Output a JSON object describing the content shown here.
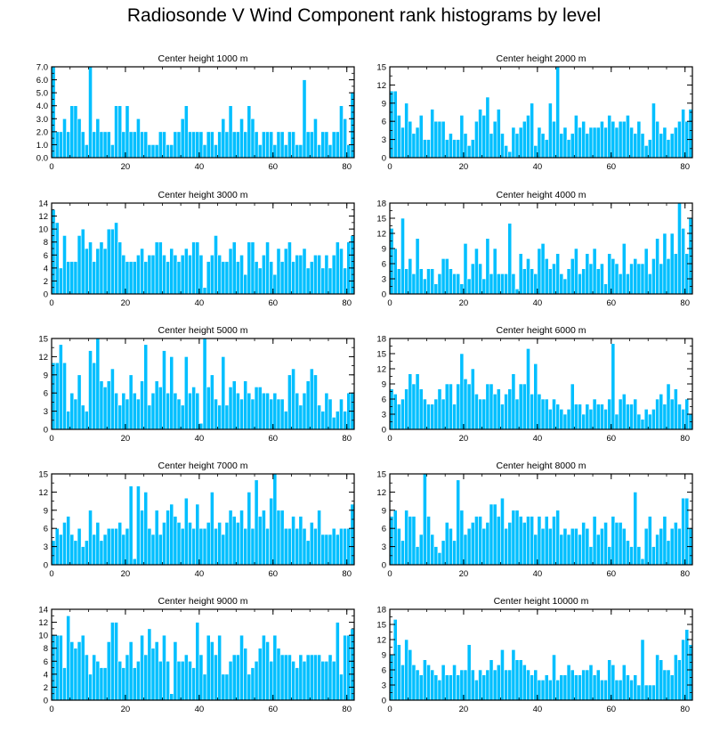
{
  "title": "Radiosonde V Wind Component rank histograms by level",
  "bar_color": "#00bfff",
  "axis_color": "#000000",
  "chart_data": [
    {
      "type": "bar",
      "title": "Center height 1000 m",
      "ylim": [
        0,
        7
      ],
      "yticks": [
        0,
        1,
        2,
        3,
        4,
        5,
        6,
        7
      ],
      "ytick_labels": [
        "0.0",
        "1.0",
        "2.0",
        "3.0",
        "4.0",
        "5.0",
        "6.0",
        "7.0"
      ],
      "xlim": [
        0,
        82
      ],
      "xticks": [
        0,
        20,
        40,
        60,
        80
      ],
      "xtick_labels": [
        "0",
        "20",
        "40",
        "60",
        "80"
      ],
      "values": [
        7,
        2,
        2,
        3,
        2,
        4,
        4,
        3,
        2,
        1,
        7,
        2,
        3,
        2,
        2,
        2,
        1,
        4,
        4,
        2,
        4,
        2,
        2,
        3,
        2,
        2,
        1,
        1,
        1,
        2,
        2,
        1,
        1,
        2,
        2,
        3,
        4,
        2,
        2,
        2,
        2,
        1,
        2,
        2,
        1,
        2,
        3,
        2,
        4,
        2,
        2,
        3,
        2,
        4,
        3,
        2,
        1,
        2,
        2,
        2,
        1,
        2,
        2,
        1,
        2,
        2,
        1,
        1,
        6,
        2,
        2,
        3,
        1,
        2,
        2,
        1,
        2,
        2,
        4,
        3,
        1,
        5
      ]
    },
    {
      "type": "bar",
      "title": "Center height 2000 m",
      "ylim": [
        0,
        15
      ],
      "yticks": [
        0,
        3,
        6,
        9,
        12,
        15
      ],
      "ytick_labels": [
        "0",
        "3",
        "6",
        "9",
        "12",
        "15"
      ],
      "xlim": [
        0,
        82
      ],
      "xticks": [
        0,
        20,
        40,
        60,
        80
      ],
      "xtick_labels": [
        "0",
        "20",
        "40",
        "60",
        "80"
      ],
      "values": [
        11,
        11,
        7,
        5,
        9,
        6,
        4,
        5,
        7,
        3,
        3,
        8,
        6,
        6,
        6,
        3,
        4,
        3,
        3,
        7,
        4,
        2,
        3,
        6,
        8,
        7,
        10,
        4,
        6,
        8,
        4,
        2,
        1,
        5,
        4,
        5,
        6,
        7,
        9,
        2,
        5,
        4,
        3,
        9,
        6,
        15,
        4,
        5,
        3,
        4,
        7,
        5,
        6,
        4,
        5,
        5,
        5,
        6,
        5,
        7,
        6,
        5,
        6,
        6,
        7,
        5,
        4,
        6,
        4,
        2,
        3,
        9,
        6,
        4,
        5,
        3,
        4,
        5,
        6,
        8,
        6,
        8
      ]
    },
    {
      "type": "bar",
      "title": "Center height 3000 m",
      "ylim": [
        0,
        14
      ],
      "yticks": [
        0,
        2,
        4,
        6,
        8,
        10,
        12,
        14
      ],
      "ytick_labels": [
        "0",
        "2",
        "4",
        "6",
        "8",
        "10",
        "12",
        "14"
      ],
      "xlim": [
        0,
        82
      ],
      "xticks": [
        0,
        20,
        40,
        60,
        80
      ],
      "xtick_labels": [
        "0",
        "20",
        "40",
        "60",
        "80"
      ],
      "values": [
        13,
        11,
        4,
        9,
        5,
        5,
        5,
        9,
        10,
        7,
        8,
        5,
        7,
        8,
        7,
        10,
        10,
        11,
        8,
        6,
        5,
        5,
        5,
        6,
        7,
        5,
        6,
        6,
        8,
        8,
        6,
        5,
        7,
        6,
        5,
        6,
        7,
        6,
        8,
        8,
        6,
        1,
        5,
        6,
        9,
        6,
        5,
        5,
        7,
        8,
        5,
        6,
        3,
        8,
        8,
        5,
        4,
        6,
        8,
        5,
        3,
        7,
        5,
        7,
        8,
        5,
        6,
        6,
        7,
        4,
        5,
        6,
        6,
        4,
        6,
        4,
        6,
        8,
        7,
        4,
        8,
        9
      ]
    },
    {
      "type": "bar",
      "title": "Center height 4000 m",
      "ylim": [
        0,
        18
      ],
      "yticks": [
        0,
        3,
        6,
        9,
        12,
        15,
        18
      ],
      "ytick_labels": [
        "0",
        "3",
        "6",
        "9",
        "12",
        "15",
        "18"
      ],
      "xlim": [
        0,
        82
      ],
      "xticks": [
        0,
        20,
        40,
        60,
        80
      ],
      "xtick_labels": [
        "0",
        "20",
        "40",
        "60",
        "80"
      ],
      "values": [
        13,
        9,
        5,
        15,
        5,
        7,
        4,
        11,
        5,
        3,
        5,
        5,
        2,
        4,
        7,
        7,
        5,
        4,
        4,
        2,
        10,
        3,
        6,
        9,
        6,
        3,
        11,
        4,
        9,
        4,
        4,
        4,
        14,
        4,
        1,
        8,
        5,
        7,
        5,
        4,
        9,
        10,
        7,
        5,
        6,
        8,
        4,
        3,
        5,
        7,
        9,
        4,
        5,
        8,
        6,
        9,
        5,
        6,
        2,
        8,
        7,
        6,
        4,
        10,
        4,
        6,
        7,
        6,
        6,
        9,
        4,
        7,
        11,
        6,
        12,
        7,
        12,
        8,
        18,
        13,
        8,
        15
      ]
    },
    {
      "type": "bar",
      "title": "Center height 5000 m",
      "ylim": [
        0,
        15
      ],
      "yticks": [
        0,
        3,
        6,
        9,
        12,
        15
      ],
      "ytick_labels": [
        "0",
        "3",
        "6",
        "9",
        "12",
        "15"
      ],
      "xlim": [
        0,
        82
      ],
      "xticks": [
        0,
        20,
        40,
        60,
        80
      ],
      "xtick_labels": [
        "0",
        "20",
        "40",
        "60",
        "80"
      ],
      "values": [
        11,
        11,
        14,
        11,
        3,
        6,
        5,
        9,
        4,
        3,
        13,
        11,
        15,
        8,
        7,
        8,
        10,
        6,
        4,
        6,
        5,
        9,
        6,
        5,
        8,
        14,
        4,
        6,
        8,
        7,
        13,
        6,
        12,
        6,
        5,
        4,
        12,
        6,
        7,
        6,
        1,
        15,
        7,
        9,
        5,
        4,
        12,
        4,
        7,
        8,
        6,
        5,
        8,
        6,
        5,
        7,
        7,
        6,
        6,
        5,
        6,
        5,
        5,
        3,
        9,
        10,
        6,
        4,
        6,
        8,
        10,
        9,
        4,
        3,
        6,
        5,
        2,
        3,
        5,
        3,
        6,
        6
      ]
    },
    {
      "type": "bar",
      "title": "Center height 6000 m",
      "ylim": [
        0,
        18
      ],
      "yticks": [
        0,
        3,
        6,
        9,
        12,
        15,
        18
      ],
      "ytick_labels": [
        "0",
        "3",
        "6",
        "9",
        "12",
        "15",
        "18"
      ],
      "xlim": [
        0,
        82
      ],
      "xticks": [
        0,
        20,
        40,
        60,
        80
      ],
      "xtick_labels": [
        "0",
        "20",
        "40",
        "60",
        "80"
      ],
      "values": [
        8,
        7,
        5,
        6,
        8,
        11,
        9,
        11,
        8,
        6,
        5,
        5,
        6,
        8,
        6,
        9,
        9,
        5,
        9,
        15,
        10,
        9,
        12,
        7,
        6,
        6,
        9,
        9,
        7,
        8,
        5,
        7,
        8,
        11,
        6,
        9,
        9,
        16,
        7,
        13,
        7,
        6,
        6,
        4,
        6,
        5,
        4,
        3,
        4,
        9,
        5,
        5,
        3,
        5,
        4,
        6,
        5,
        5,
        4,
        6,
        17,
        3,
        6,
        7,
        5,
        5,
        6,
        3,
        2,
        4,
        3,
        4,
        6,
        7,
        5,
        9,
        6,
        8,
        5,
        4,
        6,
        3
      ]
    },
    {
      "type": "bar",
      "title": "Center height 7000 m",
      "ylim": [
        0,
        15
      ],
      "yticks": [
        0,
        3,
        6,
        9,
        12,
        15
      ],
      "ytick_labels": [
        "0",
        "3",
        "6",
        "9",
        "12",
        "15"
      ],
      "xlim": [
        0,
        82
      ],
      "xticks": [
        0,
        20,
        40,
        60,
        80
      ],
      "xtick_labels": [
        "0",
        "20",
        "40",
        "60",
        "80"
      ],
      "values": [
        4,
        6,
        5,
        7,
        8,
        5,
        4,
        6,
        3,
        4,
        9,
        5,
        7,
        4,
        5,
        6,
        6,
        6,
        7,
        5,
        6,
        13,
        1,
        13,
        9,
        12,
        6,
        5,
        9,
        5,
        7,
        9,
        10,
        8,
        7,
        6,
        11,
        7,
        6,
        10,
        6,
        6,
        7,
        12,
        6,
        7,
        5,
        7,
        9,
        8,
        7,
        9,
        6,
        12,
        6,
        14,
        8,
        9,
        6,
        11,
        15,
        9,
        9,
        6,
        6,
        8,
        6,
        8,
        6,
        4,
        7,
        6,
        9,
        5,
        5,
        5,
        6,
        5,
        6,
        6,
        6,
        10
      ]
    },
    {
      "type": "bar",
      "title": "Center height 8000 m",
      "ylim": [
        0,
        15
      ],
      "yticks": [
        0,
        3,
        6,
        9,
        12,
        15
      ],
      "ytick_labels": [
        "0",
        "3",
        "6",
        "9",
        "12",
        "15"
      ],
      "xlim": [
        0,
        82
      ],
      "xticks": [
        0,
        20,
        40,
        60,
        80
      ],
      "xtick_labels": [
        "0",
        "20",
        "40",
        "60",
        "80"
      ],
      "values": [
        8,
        9,
        6,
        4,
        9,
        8,
        8,
        3,
        5,
        15,
        8,
        5,
        3,
        2,
        4,
        7,
        6,
        4,
        14,
        9,
        5,
        6,
        7,
        8,
        8,
        6,
        7,
        10,
        10,
        8,
        11,
        6,
        7,
        9,
        9,
        8,
        7,
        8,
        8,
        5,
        8,
        6,
        8,
        6,
        8,
        9,
        5,
        6,
        5,
        6,
        6,
        5,
        7,
        6,
        3,
        8,
        5,
        6,
        7,
        3,
        8,
        7,
        7,
        6,
        4,
        3,
        12,
        3,
        1,
        6,
        8,
        3,
        5,
        6,
        8,
        4,
        6,
        7,
        6,
        11,
        11,
        6
      ]
    },
    {
      "type": "bar",
      "title": "Center height 9000 m",
      "ylim": [
        0,
        14
      ],
      "yticks": [
        0,
        2,
        4,
        6,
        8,
        10,
        12,
        14
      ],
      "ytick_labels": [
        "0",
        "2",
        "4",
        "6",
        "8",
        "10",
        "12",
        "14"
      ],
      "xlim": [
        0,
        82
      ],
      "xticks": [
        0,
        20,
        40,
        60,
        80
      ],
      "xtick_labels": [
        "0",
        "20",
        "40",
        "60",
        "80"
      ],
      "values": [
        10,
        10,
        10,
        5,
        13,
        9,
        8,
        9,
        10,
        7,
        4,
        7,
        6,
        5,
        5,
        9,
        12,
        12,
        6,
        5,
        7,
        9,
        5,
        6,
        10,
        7,
        11,
        8,
        9,
        6,
        10,
        6,
        1,
        9,
        6,
        6,
        7,
        6,
        5,
        12,
        7,
        4,
        10,
        9,
        7,
        10,
        4,
        4,
        6,
        7,
        7,
        10,
        8,
        4,
        5,
        6,
        8,
        10,
        9,
        6,
        10,
        8,
        7,
        7,
        7,
        6,
        5,
        7,
        6,
        7,
        7,
        7,
        7,
        6,
        6,
        7,
        6,
        12,
        4,
        10,
        10,
        11
      ]
    },
    {
      "type": "bar",
      "title": "Center height 10000 m",
      "ylim": [
        0,
        18
      ],
      "yticks": [
        0,
        3,
        6,
        9,
        12,
        15,
        18
      ],
      "ytick_labels": [
        "0",
        "3",
        "6",
        "9",
        "12",
        "15",
        "18"
      ],
      "xlim": [
        0,
        82
      ],
      "xticks": [
        0,
        20,
        40,
        60,
        80
      ],
      "xtick_labels": [
        "0",
        "20",
        "40",
        "60",
        "80"
      ],
      "values": [
        9,
        16,
        11,
        7,
        12,
        10,
        7,
        6,
        5,
        8,
        7,
        6,
        5,
        4,
        7,
        5,
        5,
        7,
        5,
        6,
        6,
        11,
        6,
        4,
        6,
        5,
        6,
        8,
        6,
        7,
        10,
        6,
        6,
        10,
        8,
        8,
        7,
        6,
        5,
        6,
        4,
        4,
        5,
        4,
        9,
        4,
        5,
        5,
        7,
        6,
        5,
        5,
        6,
        6,
        7,
        5,
        6,
        4,
        4,
        8,
        7,
        4,
        4,
        7,
        5,
        4,
        5,
        3,
        12,
        3,
        3,
        3,
        9,
        8,
        6,
        6,
        5,
        9,
        8,
        12,
        14,
        11
      ]
    }
  ]
}
